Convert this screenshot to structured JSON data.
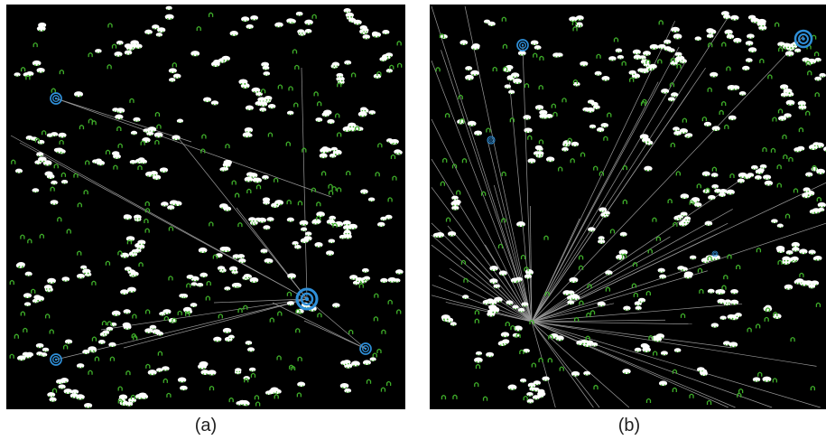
{
  "panels": [
    {
      "id": "a",
      "caption": "(a)"
    },
    {
      "id": "b",
      "caption": "(b)"
    }
  ],
  "colors": {
    "background": "#000000",
    "node_white": "#ffffff",
    "node_green": "#3fae2a",
    "hub_blue": "#2f8fd8",
    "edge_gray": "#9a9a9a",
    "caption_text": "#222222"
  },
  "icons": {
    "cluster_node": "white-mound-node-icon",
    "small_node": "green-arch-node-icon",
    "hub": "blue-target-hub-icon"
  }
}
